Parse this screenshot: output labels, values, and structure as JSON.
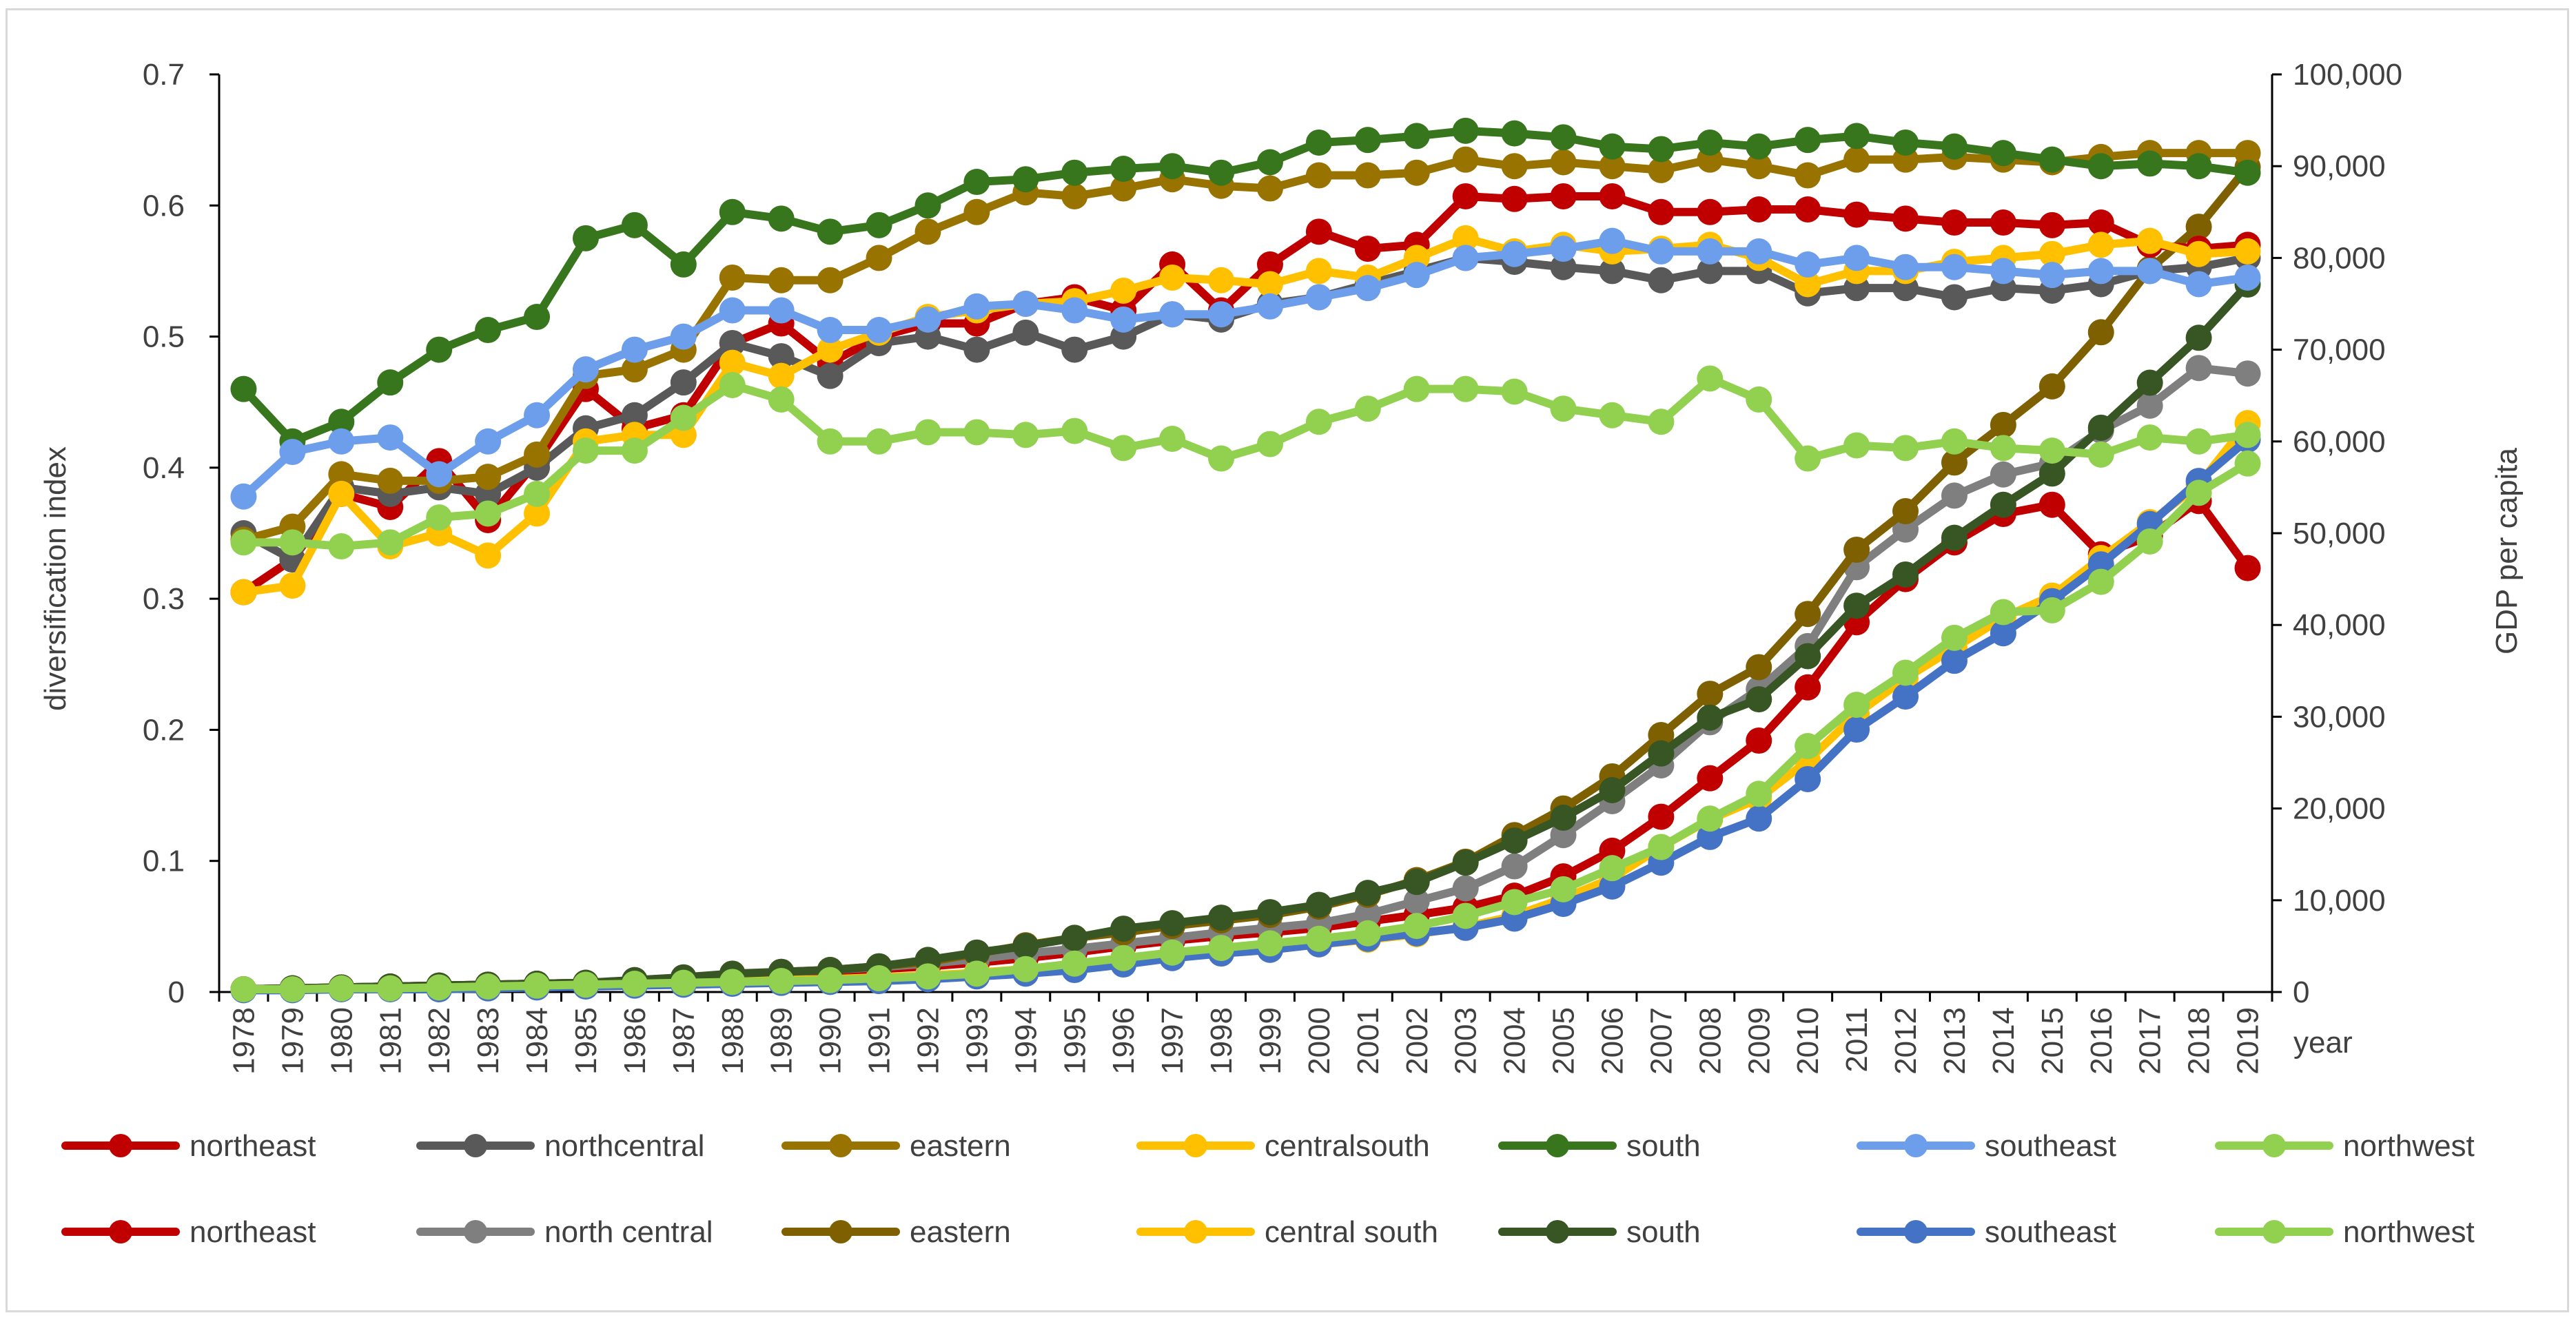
{
  "chart_data": {
    "type": "line",
    "title": "",
    "xlabel": "year",
    "ylabel": "diversification index",
    "y2label": "GDP per capita",
    "ylim": [
      0,
      0.7
    ],
    "y2lim": [
      0,
      100000
    ],
    "grid": false,
    "legend_position": "bottom",
    "yticks": [
      "0",
      "0.1",
      "0.2",
      "0.3",
      "0.4",
      "0.5",
      "0.6",
      "0.7"
    ],
    "y2ticks": [
      "0",
      "10,000",
      "20,000",
      "30,000",
      "40,000",
      "50,000",
      "60,000",
      "70,000",
      "80,000",
      "90,000",
      "100,000"
    ],
    "x": [
      "1978",
      "1979",
      "1980",
      "1981",
      "1982",
      "1983",
      "1984",
      "1985",
      "1986",
      "1987",
      "1988",
      "1989",
      "1990",
      "1991",
      "1992",
      "1993",
      "1994",
      "1995",
      "1996",
      "1997",
      "1998",
      "1999",
      "2000",
      "2001",
      "2002",
      "2003",
      "2004",
      "2005",
      "2006",
      "2007",
      "2008",
      "2009",
      "2010",
      "2011",
      "2012",
      "2013",
      "2014",
      "2015",
      "2016",
      "2017",
      "2018",
      "2019"
    ],
    "diversification_series": [
      {
        "name": "northeast",
        "color": "#c00000",
        "axis": "left",
        "values": [
          0.305,
          0.33,
          0.38,
          0.37,
          0.405,
          0.36,
          0.405,
          0.46,
          0.43,
          0.44,
          0.495,
          0.51,
          0.48,
          0.5,
          0.51,
          0.51,
          0.525,
          0.53,
          0.52,
          0.555,
          0.52,
          0.555,
          0.58,
          0.567,
          0.57,
          0.607,
          0.605,
          0.607,
          0.607,
          0.595,
          0.595,
          0.597,
          0.597,
          0.593,
          0.59,
          0.587,
          0.587,
          0.585,
          0.587,
          0.57,
          0.567,
          0.57
        ]
      },
      {
        "name": "northcentral",
        "color": "#595959",
        "axis": "left",
        "values": [
          0.35,
          0.33,
          0.385,
          0.38,
          0.385,
          0.38,
          0.4,
          0.43,
          0.44,
          0.465,
          0.495,
          0.485,
          0.47,
          0.495,
          0.5,
          0.49,
          0.503,
          0.49,
          0.5,
          0.517,
          0.513,
          0.525,
          0.53,
          0.54,
          0.55,
          0.56,
          0.557,
          0.553,
          0.55,
          0.543,
          0.55,
          0.55,
          0.533,
          0.537,
          0.537,
          0.53,
          0.537,
          0.535,
          0.54,
          0.55,
          0.553,
          0.56
        ]
      },
      {
        "name": "eastern",
        "color": "#997300",
        "axis": "left",
        "values": [
          0.345,
          0.355,
          0.395,
          0.39,
          0.39,
          0.393,
          0.41,
          0.47,
          0.475,
          0.49,
          0.545,
          0.543,
          0.543,
          0.56,
          0.58,
          0.595,
          0.61,
          0.607,
          0.613,
          0.62,
          0.615,
          0.613,
          0.623,
          0.623,
          0.625,
          0.635,
          0.63,
          0.633,
          0.63,
          0.627,
          0.635,
          0.63,
          0.623,
          0.635,
          0.635,
          0.637,
          0.635,
          0.633,
          0.637,
          0.64,
          0.64,
          0.64
        ]
      },
      {
        "name": "centralsouth",
        "color": "#ffc000",
        "axis": "left",
        "values": [
          0.305,
          0.31,
          0.38,
          0.34,
          0.35,
          0.333,
          0.365,
          0.42,
          0.425,
          0.425,
          0.48,
          0.47,
          0.49,
          0.503,
          0.515,
          0.52,
          0.525,
          0.527,
          0.535,
          0.545,
          0.543,
          0.54,
          0.55,
          0.545,
          0.56,
          0.575,
          0.565,
          0.57,
          0.565,
          0.567,
          0.57,
          0.56,
          0.54,
          0.55,
          0.55,
          0.557,
          0.56,
          0.563,
          0.57,
          0.573,
          0.563,
          0.565
        ]
      },
      {
        "name": "south",
        "color": "#38761d",
        "axis": "left",
        "values": [
          0.46,
          0.42,
          0.435,
          0.465,
          0.49,
          0.505,
          0.515,
          0.575,
          0.585,
          0.555,
          0.595,
          0.59,
          0.58,
          0.585,
          0.6,
          0.618,
          0.62,
          0.625,
          0.628,
          0.63,
          0.625,
          0.633,
          0.648,
          0.65,
          0.653,
          0.657,
          0.655,
          0.652,
          0.645,
          0.643,
          0.648,
          0.645,
          0.65,
          0.653,
          0.648,
          0.645,
          0.64,
          0.635,
          0.63,
          0.632,
          0.63,
          0.625
        ]
      },
      {
        "name": "southeast",
        "color": "#6d9eeb",
        "axis": "left",
        "values": [
          0.378,
          0.412,
          0.42,
          0.423,
          0.395,
          0.42,
          0.44,
          0.475,
          0.49,
          0.5,
          0.52,
          0.52,
          0.505,
          0.505,
          0.513,
          0.523,
          0.525,
          0.52,
          0.513,
          0.517,
          0.517,
          0.523,
          0.53,
          0.537,
          0.547,
          0.56,
          0.563,
          0.567,
          0.573,
          0.565,
          0.565,
          0.565,
          0.555,
          0.56,
          0.553,
          0.553,
          0.55,
          0.547,
          0.55,
          0.55,
          0.54,
          0.545
        ]
      },
      {
        "name": "northwest",
        "color": "#92d050",
        "axis": "left",
        "values": [
          0.343,
          0.343,
          0.34,
          0.343,
          0.362,
          0.365,
          0.38,
          0.413,
          0.413,
          0.438,
          0.463,
          0.452,
          0.42,
          0.42,
          0.427,
          0.427,
          0.425,
          0.428,
          0.415,
          0.422,
          0.407,
          0.418,
          0.435,
          0.445,
          0.46,
          0.46,
          0.458,
          0.445,
          0.44,
          0.435,
          0.468,
          0.452,
          0.407,
          0.417,
          0.415,
          0.42,
          0.415,
          0.413,
          0.41,
          0.423,
          0.42,
          0.425
        ]
      }
    ],
    "gdp_series": [
      {
        "name": "northeast",
        "color": "#c00000",
        "axis": "right",
        "values": [
          300,
          400,
          500,
          600,
          700,
          800,
          900,
          1000,
          1200,
          1500,
          1800,
          2000,
          2200,
          2500,
          2800,
          3200,
          3700,
          4300,
          5000,
          5600,
          6100,
          6500,
          7000,
          7700,
          8400,
          9200,
          10500,
          12600,
          15400,
          19100,
          23300,
          27400,
          33200,
          40300,
          45000,
          49000,
          52100,
          53100,
          47700,
          49700,
          53500,
          46200
        ]
      },
      {
        "name": "north central",
        "color": "#7f7f7f",
        "axis": "right",
        "values": [
          300,
          400,
          500,
          600,
          700,
          800,
          900,
          1000,
          1200,
          1500,
          1800,
          2100,
          2400,
          2700,
          3100,
          3600,
          4200,
          4700,
          5300,
          5900,
          6500,
          7000,
          7500,
          8500,
          9900,
          11300,
          13700,
          17100,
          20800,
          24700,
          29400,
          33000,
          37700,
          46300,
          50400,
          54100,
          56400,
          57600,
          61200,
          63900,
          68000,
          67400
        ]
      },
      {
        "name": "eastern",
        "color": "#7f6000",
        "axis": "right",
        "values": [
          300,
          400,
          500,
          600,
          700,
          800,
          900,
          1000,
          1200,
          1500,
          1900,
          2200,
          2400,
          2800,
          3300,
          4200,
          5100,
          5900,
          6500,
          7200,
          7800,
          8400,
          9300,
          10600,
          12200,
          14200,
          17100,
          20000,
          23500,
          28000,
          32500,
          35400,
          41200,
          48200,
          52400,
          57700,
          61800,
          66000,
          71900,
          78800,
          83400,
          89900
        ]
      },
      {
        "name": "central south",
        "color": "#ffc000",
        "axis": "right",
        "values": [
          300,
          300,
          400,
          500,
          500,
          600,
          700,
          800,
          900,
          1000,
          1200,
          1300,
          1400,
          1600,
          1800,
          2100,
          2500,
          2900,
          3400,
          3800,
          4200,
          4600,
          5200,
          5700,
          6300,
          7100,
          8300,
          10200,
          12400,
          15800,
          18800,
          21100,
          25200,
          30300,
          34200,
          37500,
          40800,
          43200,
          47300,
          51200,
          55300,
          62000
        ]
      },
      {
        "name": "south",
        "color": "#375623",
        "axis": "right",
        "values": [
          300,
          400,
          500,
          600,
          700,
          800,
          900,
          1000,
          1300,
          1600,
          2000,
          2200,
          2400,
          2800,
          3500,
          4300,
          5000,
          5900,
          6900,
          7500,
          8100,
          8700,
          9500,
          10800,
          12000,
          14100,
          16500,
          19000,
          22000,
          26000,
          29900,
          31900,
          36600,
          42100,
          45500,
          49500,
          53100,
          56500,
          61500,
          66400,
          71300,
          77100
        ]
      },
      {
        "name": "southeast",
        "color": "#4472c4",
        "axis": "right",
        "values": [
          200,
          200,
          300,
          300,
          300,
          400,
          500,
          600,
          700,
          800,
          900,
          1000,
          1100,
          1200,
          1400,
          1700,
          2000,
          2400,
          3000,
          3700,
          4200,
          4600,
          5200,
          5800,
          6400,
          7000,
          8000,
          9600,
          11500,
          14100,
          16900,
          18900,
          23200,
          28600,
          32200,
          36100,
          39100,
          42600,
          46600,
          51000,
          55700,
          60200
        ]
      },
      {
        "name": "northwest",
        "color": "#92d050",
        "axis": "right",
        "values": [
          300,
          300,
          400,
          400,
          500,
          600,
          700,
          800,
          900,
          1000,
          1100,
          1200,
          1300,
          1500,
          1700,
          2000,
          2500,
          3100,
          3700,
          4300,
          4800,
          5300,
          5800,
          6400,
          7200,
          8300,
          9800,
          11200,
          13500,
          15800,
          18900,
          21600,
          26800,
          31300,
          34800,
          38600,
          41400,
          41600,
          44700,
          49100,
          54400,
          57600
        ]
      }
    ]
  }
}
